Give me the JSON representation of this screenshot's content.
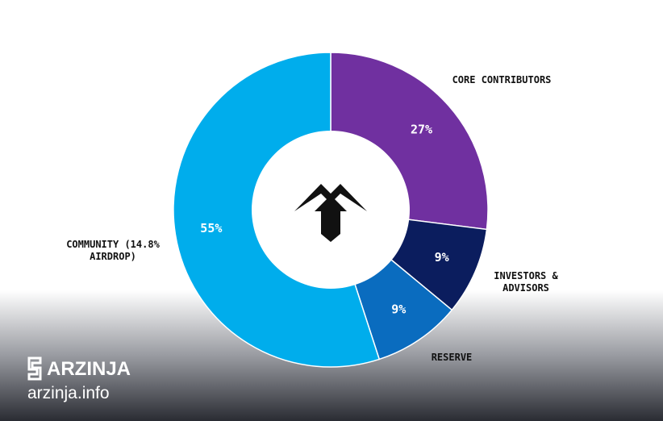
{
  "chart_data": {
    "type": "donut",
    "categories": [
      "CORE CONTRIBUTORS",
      "INVESTORS & ADVISORS",
      "RESERVE",
      "COMMUNITY (14.8% AIRDROP)"
    ],
    "values": [
      27,
      9,
      9,
      55
    ],
    "value_labels": [
      "27%",
      "9%",
      "9%",
      "55%"
    ],
    "colors": [
      "#7030a0",
      "#0b1d5e",
      "#0a6cbf",
      "#00adec"
    ]
  },
  "watermark": {
    "brand": "ARZINJA",
    "url": "arzinja.info"
  }
}
